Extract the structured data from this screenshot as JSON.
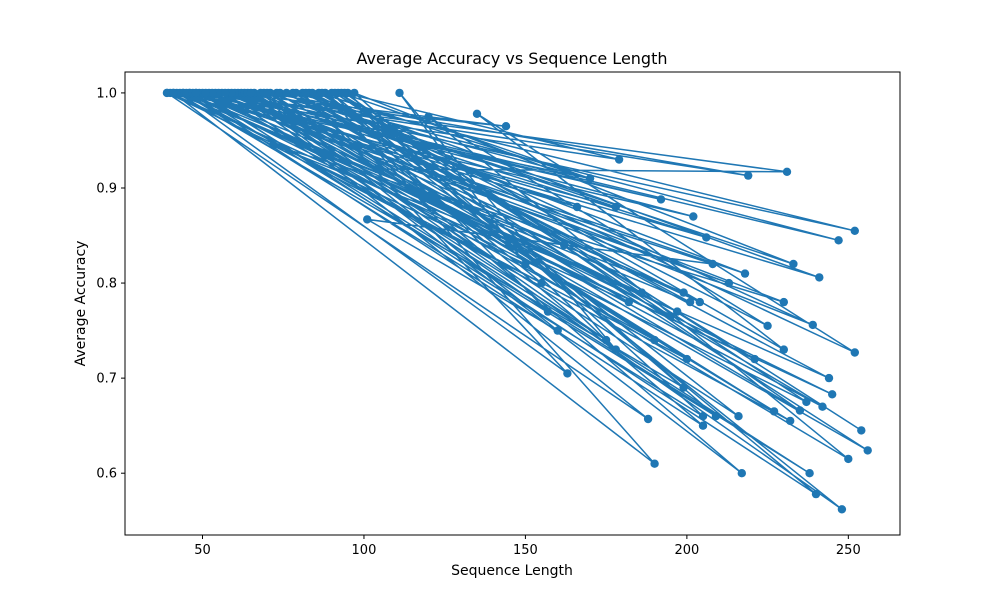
{
  "chart_data": {
    "type": "line",
    "title": "Average Accuracy vs Sequence Length",
    "xlabel": "Sequence Length",
    "ylabel": "Average Accuracy",
    "xlim": [
      26,
      266
    ],
    "ylim": [
      0.535,
      1.022
    ],
    "xticks": [
      50,
      100,
      150,
      200,
      250
    ],
    "xtick_labels": [
      "50",
      "100",
      "150",
      "200",
      "250"
    ],
    "yticks": [
      0.6,
      0.7,
      0.8,
      0.9,
      1.0
    ],
    "ytick_labels": [
      "0.6",
      "0.7",
      "0.8",
      "0.9",
      "1.0"
    ],
    "grid": false,
    "markers": true,
    "series": [
      {
        "color": "#1f77b4",
        "x": [
          39,
          150,
          111,
          178,
          95,
          205,
          44,
          186,
          72,
          230,
          61,
          216,
          88,
          190,
          41,
          170,
          86,
          221,
          49,
          238,
          54,
          213,
          48,
          197,
          58,
          252,
          78,
          244,
          44,
          232,
          66,
          175,
          56,
          247,
          73,
          182,
          40,
          155,
          83,
          205,
          46,
          208,
          101,
          160,
          68,
          190,
          52,
          218,
          71,
          200,
          43,
          163,
          81,
          252,
          135,
          230,
          92,
          237,
          46,
          166,
          62,
          188,
          39,
          202,
          55,
          245,
          45,
          201,
          79,
          217,
          63,
          256,
          84,
          225,
          120,
          250,
          60,
          157,
          90,
          240,
          50,
          231,
          104,
          227,
          69,
          170,
          93,
          209,
          47,
          178,
          74,
          233,
          97,
          199,
          42,
          144,
          59,
          242,
          76,
          204,
          64,
          248,
          87,
          162,
          48,
          192,
          53,
          219,
          70,
          235,
          94,
          179,
          41,
          199,
          57,
          239,
          82,
          241,
          51,
          206,
          65,
          195,
          91,
          254
        ],
        "y": [
          1.0,
          0.82,
          1.0,
          0.73,
          1.0,
          0.66,
          1.0,
          0.79,
          0.945,
          0.78,
          1.0,
          0.66,
          1.0,
          0.61,
          1.0,
          0.91,
          1.0,
          0.72,
          1.0,
          0.6,
          1.0,
          0.8,
          1.0,
          0.77,
          1.0,
          0.855,
          1.0,
          0.7,
          1.0,
          0.655,
          1.0,
          0.74,
          1.0,
          0.845,
          1.0,
          0.78,
          1.0,
          0.8,
          1.0,
          0.65,
          1.0,
          0.82,
          0.867,
          0.75,
          1.0,
          0.74,
          1.0,
          0.81,
          1.0,
          0.72,
          1.0,
          0.705,
          1.0,
          0.727,
          0.978,
          0.73,
          1.0,
          0.675,
          1.0,
          0.88,
          1.0,
          0.657,
          1.0,
          0.87,
          1.0,
          0.683,
          1.0,
          0.78,
          1.0,
          0.6,
          1.0,
          0.624,
          1.0,
          0.755,
          0.975,
          0.615,
          1.0,
          0.77,
          1.0,
          0.578,
          1.0,
          0.917,
          0.92,
          0.665,
          1.0,
          0.91,
          1.0,
          0.66,
          1.0,
          0.88,
          1.0,
          0.82,
          1.0,
          0.69,
          1.0,
          0.965,
          1.0,
          0.67,
          1.0,
          0.78,
          1.0,
          0.562,
          1.0,
          0.84,
          1.0,
          0.888,
          1.0,
          0.913,
          1.0,
          0.666,
          1.0,
          0.93,
          1.0,
          0.79,
          1.0,
          0.756,
          1.0,
          0.806,
          1.0,
          0.848,
          1.0,
          0.765,
          1.0,
          0.645
        ]
      }
    ]
  }
}
